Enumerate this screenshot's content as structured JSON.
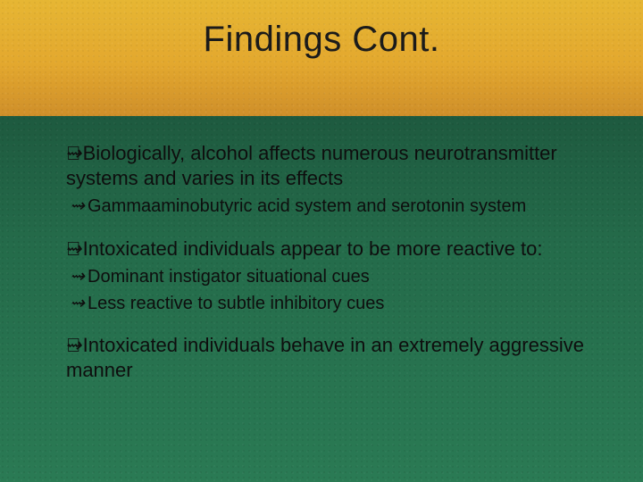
{
  "slide": {
    "title": "Findings Cont.",
    "header": {
      "bg_gradient": [
        "#e6b633",
        "#e3a82e",
        "#cf8f2a"
      ],
      "title_color": "#1a1a1a",
      "title_fontsize_pt": 30
    },
    "body": {
      "bg_gradient": [
        "#1e5a3f",
        "#246b4a",
        "#2a7a54"
      ],
      "text_color": "#0e0e0e",
      "lvl1_fontsize_pt": 17,
      "lvl2_fontsize_pt": 15,
      "bullet_glyph": "⇝"
    },
    "bullets": [
      {
        "level": 1,
        "text": "Biologically, alcohol affects numerous neurotransmitter systems and varies in its effects",
        "children": [
          {
            "level": 2,
            "text": "Gammaaminobutyric acid system and serotonin system"
          }
        ]
      },
      {
        "level": 1,
        "text": "Intoxicated individuals appear to be more reactive to:",
        "children": [
          {
            "level": 2,
            "text": "Dominant instigator situational cues"
          },
          {
            "level": 2,
            "text": "Less reactive to subtle inhibitory cues"
          }
        ]
      },
      {
        "level": 1,
        "text": "Intoxicated individuals behave in an extremely aggressive manner",
        "children": []
      }
    ]
  }
}
